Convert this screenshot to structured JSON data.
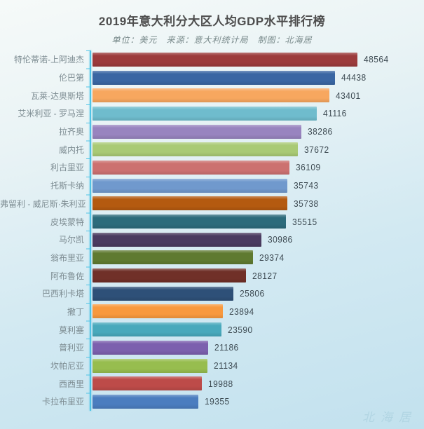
{
  "header": {
    "title": "2019年意大利分大区人均GDP水平排行榜",
    "subtitle": "单位：美元　来源：意大利统计局　制图：北海居"
  },
  "watermark": "北海居",
  "colors": {
    "axis": "#50c4e6",
    "title_text": "#4d4d4d",
    "subtitle_text": "#78898a",
    "category_label": "#7d8c92",
    "value_label": "#3d4a52"
  },
  "chart_data": {
    "type": "bar",
    "orientation": "horizontal",
    "title": "2019年意大利分大区人均GDP水平排行榜",
    "unit": "美元",
    "source": "意大利统计局",
    "credit": "北海居",
    "xlabel": "",
    "ylabel": "",
    "xlim": [
      0,
      50000
    ],
    "grid": false,
    "legend": false,
    "value_labels_shown": true,
    "categories": [
      "特伦蒂诺-上阿迪杰",
      "伦巴第",
      "瓦莱·达奥斯塔",
      "艾米利亚 - 罗马涅",
      "拉齐奥",
      "威内托",
      "利古里亚",
      "托斯卡纳",
      "弗留利 - 威尼斯·朱利亚",
      "皮埃蒙特",
      "马尔凯",
      "翁布里亚",
      "阿布鲁佐",
      "巴西利卡塔",
      "撒丁",
      "莫利塞",
      "普利亚",
      "坎帕尼亚",
      "西西里",
      "卡拉布里亚"
    ],
    "values": [
      48564,
      44438,
      43401,
      41116,
      38286,
      37672,
      36109,
      35743,
      35738,
      35515,
      30986,
      29374,
      28127,
      25806,
      23894,
      23590,
      21186,
      21134,
      19988,
      19355
    ],
    "bar_colors": [
      "#9c3b3c",
      "#3a66a3",
      "#f7a75f",
      "#6fbccd",
      "#9884bf",
      "#a9ca75",
      "#cc7170",
      "#7099cd",
      "#b45a10",
      "#2c6b7b",
      "#4a3b60",
      "#5f7a30",
      "#703028",
      "#2e5078",
      "#f8993e",
      "#48a9bc",
      "#7c60ae",
      "#97bd4f",
      "#bd4b49",
      "#4b7dbf"
    ]
  }
}
